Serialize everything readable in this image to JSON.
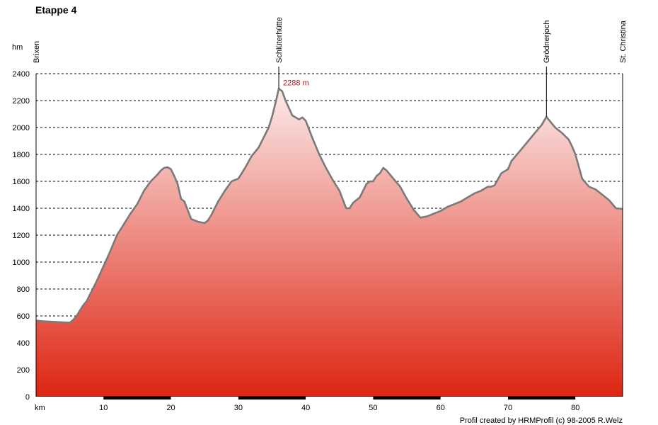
{
  "chart_data": {
    "type": "area",
    "title": "Etappe 4",
    "xlabel": "km",
    "ylabel": "hm",
    "xlim": [
      0,
      87
    ],
    "ylim": [
      0,
      2400
    ],
    "x_ticks": [
      10,
      20,
      30,
      40,
      50,
      60,
      70,
      80
    ],
    "y_ticks": [
      0,
      200,
      400,
      600,
      800,
      1000,
      1200,
      1400,
      1600,
      1800,
      2000,
      2200,
      2400
    ],
    "grid": true,
    "colors": {
      "fill_top": "#fbeaea",
      "fill_bottom": "#de2512",
      "line": "#7a7a7a",
      "peak_label": "#b2181b"
    },
    "waypoints": [
      {
        "name": "Brixen",
        "x": 0,
        "y": 565
      },
      {
        "name": "Schlüterhütte",
        "x": 36,
        "y": 2288
      },
      {
        "name": "Grödnerjoch",
        "x": 75.7,
        "y": 2080
      },
      {
        "name": "St. Christina",
        "x": 87,
        "y": 1400
      }
    ],
    "annotations": [
      {
        "text": "2288 m",
        "x": 36,
        "y": 2288
      }
    ],
    "credit": "Profil created by HRMProfil (c) 98-2005 R.Welz",
    "x": [
      0,
      1,
      2,
      3,
      4,
      5,
      5.5,
      6,
      6.5,
      7,
      7.5,
      8,
      9,
      10,
      11,
      12,
      13,
      14,
      15,
      16,
      17,
      18,
      18.5,
      19,
      19.5,
      20,
      20.5,
      21,
      21.5,
      22,
      23,
      24,
      25,
      25.5,
      26,
      27,
      28,
      29,
      29.5,
      30,
      31,
      32,
      33,
      34,
      34.5,
      35,
      35.5,
      36,
      36.5,
      37,
      38,
      39,
      39.5,
      40,
      41,
      42,
      43,
      44,
      45,
      46,
      46.5,
      47,
      48,
      49,
      49.5,
      50,
      50.5,
      51,
      51.5,
      52,
      53,
      54,
      55,
      56,
      57,
      58,
      59,
      60,
      61,
      62,
      63,
      64,
      65,
      66,
      67,
      67.5,
      68,
      69,
      70,
      70.5,
      71,
      72,
      73,
      74,
      75,
      75.7,
      76,
      77,
      78,
      79,
      79.5,
      80,
      81,
      82,
      83,
      84,
      85,
      86,
      87
    ],
    "y": [
      565,
      560,
      558,
      555,
      552,
      550,
      570,
      600,
      640,
      680,
      710,
      760,
      860,
      970,
      1080,
      1200,
      1280,
      1360,
      1430,
      1530,
      1600,
      1650,
      1680,
      1700,
      1705,
      1690,
      1640,
      1580,
      1470,
      1450,
      1320,
      1300,
      1290,
      1310,
      1350,
      1450,
      1530,
      1600,
      1610,
      1620,
      1700,
      1790,
      1850,
      1950,
      2000,
      2080,
      2180,
      2288,
      2270,
      2200,
      2090,
      2060,
      2075,
      2050,
      1920,
      1800,
      1700,
      1610,
      1530,
      1400,
      1400,
      1440,
      1480,
      1580,
      1600,
      1600,
      1640,
      1660,
      1700,
      1680,
      1620,
      1560,
      1470,
      1390,
      1330,
      1340,
      1360,
      1380,
      1410,
      1430,
      1450,
      1480,
      1510,
      1530,
      1560,
      1560,
      1570,
      1660,
      1690,
      1750,
      1780,
      1840,
      1900,
      1960,
      2020,
      2080,
      2060,
      2000,
      1960,
      1910,
      1860,
      1800,
      1620,
      1560,
      1540,
      1500,
      1460,
      1400,
      1395
    ]
  }
}
